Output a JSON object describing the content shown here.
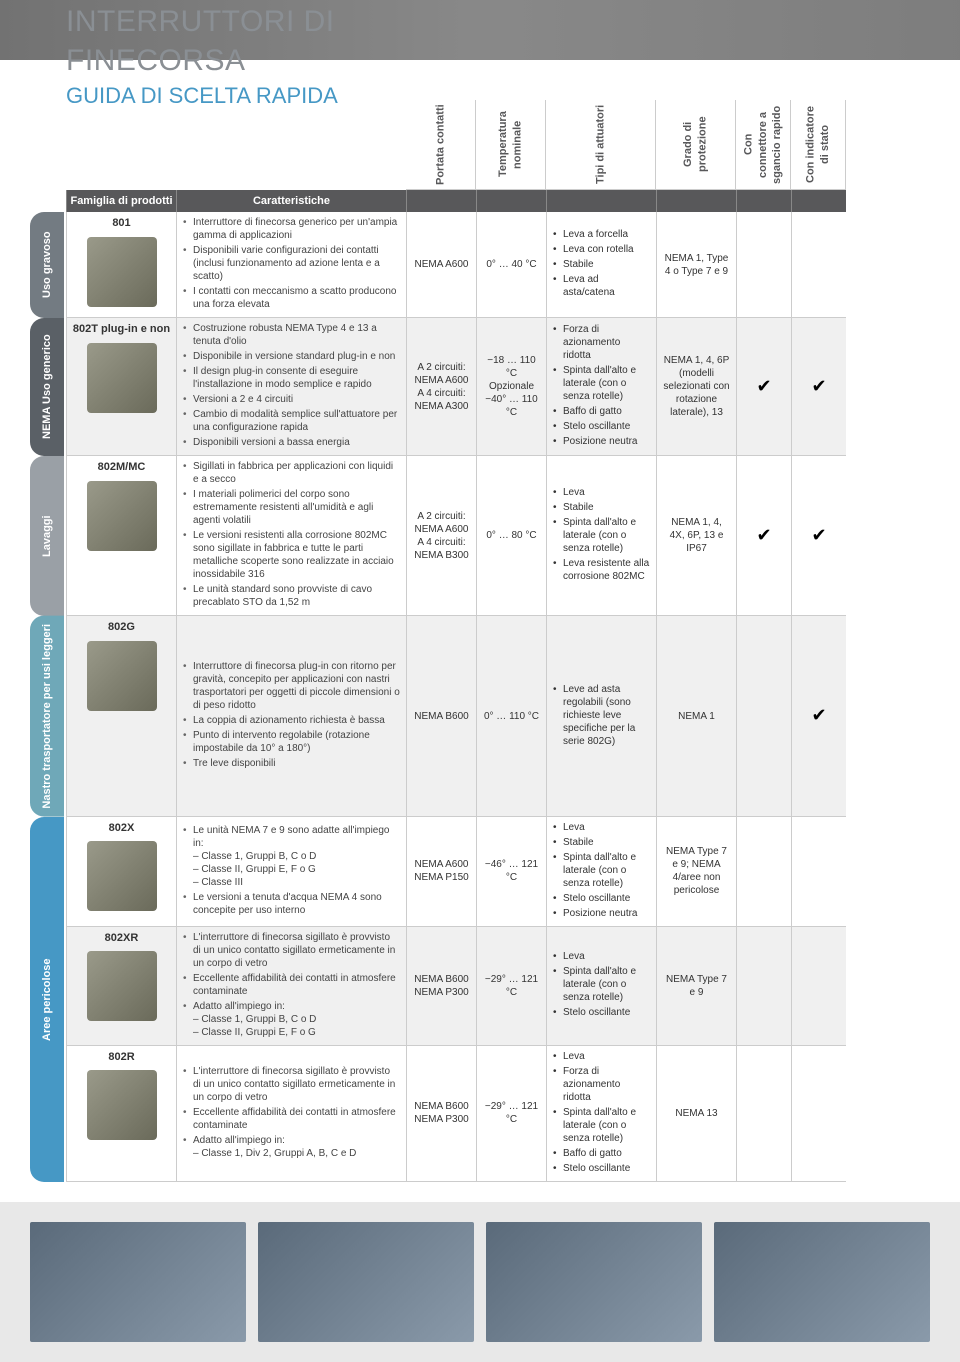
{
  "title": "INTERRUTTORI DI FINECORSA",
  "subtitle": "GUIDA DI SCELTA RAPIDA",
  "columns": {
    "family": "Famiglia di prodotti",
    "features": "Caratteristiche",
    "contact_rating": "Portata contatti",
    "temp": "Temperatura nominale",
    "actuators": "Tipi di attuatori",
    "protection": "Grado di protezione",
    "quick_connect": "Con connettore a sgancio rapido",
    "status_ind": "Con indicatore di stato"
  },
  "categories": [
    {
      "label": "Uso gravoso",
      "color": "#737b82",
      "rows": 1
    },
    {
      "label": "NEMA Uso generico",
      "color": "#5a6066",
      "rows": 1
    },
    {
      "label": "Lavaggi",
      "color": "#9aa0a6",
      "rows": 1
    },
    {
      "label": "Nastro trasportatore per usi leggeri",
      "color": "#6fa8b8",
      "rows": 1
    },
    {
      "label": "Aree pericolose",
      "color": "#4698c5",
      "rows": 3
    }
  ],
  "rows": [
    {
      "family": "801",
      "features": [
        "Interruttore di finecorsa generico per un'ampia gamma di applicazioni",
        "Disponibili varie configurazioni dei contatti (inclusi funzionamento ad azione lenta e a scatto)",
        "I contatti con meccanismo a scatto producono una forza elevata"
      ],
      "contact": "NEMA A600",
      "temp": "0° … 40 °C",
      "actuators": [
        "Leva a forcella",
        "Leva con rotella",
        "Stabile",
        "Leva ad asta/catena"
      ],
      "protection": "NEMA 1, Type 4 o Type 7 e 9",
      "quick": "",
      "status": "",
      "alt": false
    },
    {
      "family": "802T plug-in e non",
      "features": [
        "Costruzione robusta NEMA Type 4 e 13 a tenuta d'olio",
        "Disponibile in versione standard plug-in e non",
        "Il design plug-in consente di eseguire l'installazione in modo semplice e rapido",
        "Versioni a 2 e 4 circuiti",
        "Cambio di modalità semplice sull'attuatore per una configurazione rapida",
        "Disponibili versioni a bassa energia"
      ],
      "contact": "A 2 circuiti: NEMA A600\nA 4 circuiti: NEMA A300",
      "temp": "−18 … 110 °C\nOpzionale\n−40° … 110 °C",
      "actuators": [
        "Forza di azionamento ridotta",
        "Spinta dall'alto e laterale (con o senza rotelle)",
        "Baffo di gatto",
        "Stelo oscillante",
        "Posizione neutra"
      ],
      "protection": "NEMA 1, 4, 6P (modelli selezionati con rotazione laterale), 13",
      "quick": "✔",
      "status": "✔",
      "alt": true
    },
    {
      "family": "802M/MC",
      "features": [
        "Sigillati in fabbrica per applicazioni con liquidi e a secco",
        "I materiali polimerici del corpo sono estremamente resistenti all'umidità e agli agenti volatili",
        "Le versioni resistenti alla corrosione 802MC sono sigillate in fabbrica e tutte le parti metalliche scoperte sono realizzate in acciaio inossidabile 316",
        "Le unità standard sono provviste di cavo precablato STO da 1,52 m"
      ],
      "contact": "A 2 circuiti: NEMA A600\nA 4 circuiti: NEMA B300",
      "temp": "0° … 80 °C",
      "actuators": [
        "Leva",
        "Stabile",
        "Spinta dall'alto e laterale (con o senza rotelle)",
        "Leva resistente alla corrosione 802MC"
      ],
      "protection": "NEMA 1, 4, 4X, 6P, 13 e IP67",
      "quick": "✔",
      "status": "✔",
      "alt": false
    },
    {
      "family": "802G",
      "features": [
        "Interruttore di finecorsa plug-in con ritorno per gravità, concepito per applicazioni con nastri trasportatori per oggetti di piccole dimensioni o di peso ridotto",
        "La coppia di azionamento richiesta è bassa",
        "Punto di intervento regolabile (rotazione impostabile da 10° a 180°)",
        "Tre leve disponibili"
      ],
      "contact": "NEMA B600",
      "temp": "0° … 110 °C",
      "actuators": [
        "Leve ad asta regolabili (sono richieste leve specifiche per la serie 802G)"
      ],
      "protection": "NEMA 1",
      "quick": "",
      "status": "✔",
      "alt": true
    },
    {
      "family": "802X",
      "features": [
        "Le unità NEMA 7 e 9 sono adatte all'impiego in:\n– Classe 1, Gruppi B, C o D\n– Classe II, Gruppi E, F o G\n– Classe III",
        "Le versioni a tenuta d'acqua NEMA 4 sono concepite per uso interno"
      ],
      "contact": "NEMA A600\nNEMA P150",
      "temp": "−46° … 121 °C",
      "actuators": [
        "Leva",
        "Stabile",
        "Spinta dall'alto e laterale (con o senza rotelle)",
        "Stelo oscillante",
        "Posizione neutra"
      ],
      "protection": "NEMA Type 7 e 9; NEMA 4/aree non pericolose",
      "quick": "",
      "status": "",
      "alt": false
    },
    {
      "family": "802XR",
      "features": [
        "L'interruttore di finecorsa sigillato è provvisto di un unico contatto sigillato ermeticamente in un corpo di vetro",
        "Eccellente affidabilità dei contatti in atmosfere contaminate",
        "Adatto all'impiego in:\n– Classe 1, Gruppi B, C o D\n– Classe II, Gruppi E, F o G"
      ],
      "contact": "NEMA B600\nNEMA P300",
      "temp": "−29° … 121 °C",
      "actuators": [
        "Leva",
        "Spinta dall'alto e laterale (con o senza rotelle)",
        "Stelo oscillante"
      ],
      "protection": "NEMA Type 7 e 9",
      "quick": "",
      "status": "",
      "alt": true
    },
    {
      "family": "802R",
      "features": [
        "L'interruttore di finecorsa sigillato è provvisto di un unico contatto sigillato ermeticamente in un corpo di vetro",
        "Eccellente affidabilità dei contatti in atmosfere contaminate",
        "Adatto all'impiego in:\n– Classe 1, Div 2, Gruppi A, B, C e D"
      ],
      "contact": "NEMA B600\nNEMA P300",
      "temp": "−29° … 121 °C",
      "actuators": [
        "Leva",
        "Forza di azionamento ridotta",
        "Spinta dall'alto e laterale (con o senza rotelle)",
        "Baffo di gatto",
        "Stelo oscillante"
      ],
      "protection": "NEMA 13",
      "quick": "",
      "status": "",
      "alt": false
    }
  ]
}
